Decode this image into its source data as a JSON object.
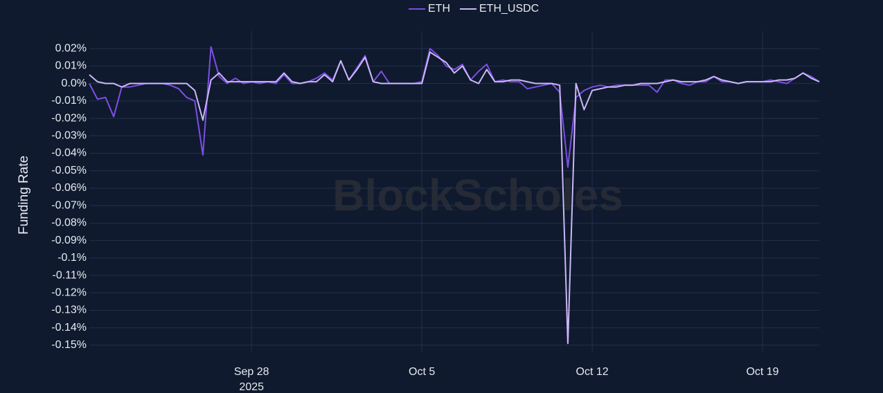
{
  "chart_data": {
    "type": "line",
    "y_label": "Funding Rate",
    "watermark": "BlockScholes",
    "grid": true,
    "legend": "top",
    "ylim": [
      -0.154,
      0.03
    ],
    "yticks": [
      {
        "value": 0.02,
        "label": "0.02%"
      },
      {
        "value": 0.01,
        "label": "0.01%"
      },
      {
        "value": 0,
        "label": "0.0%"
      },
      {
        "value": -0.01,
        "label": "-0.01%"
      },
      {
        "value": -0.02,
        "label": "-0.02%"
      },
      {
        "value": -0.03,
        "label": "-0.03%"
      },
      {
        "value": -0.04,
        "label": "-0.04%"
      },
      {
        "value": -0.05,
        "label": "-0.05%"
      },
      {
        "value": -0.06,
        "label": "-0.06%"
      },
      {
        "value": -0.07,
        "label": "-0.07%"
      },
      {
        "value": -0.08,
        "label": "-0.08%"
      },
      {
        "value": -0.09,
        "label": "-0.09%"
      },
      {
        "value": -0.1,
        "label": "-0.1%"
      },
      {
        "value": -0.11,
        "label": "-0.11%"
      },
      {
        "value": -0.12,
        "label": "-0.12%"
      },
      {
        "value": -0.13,
        "label": "-0.13%"
      },
      {
        "value": -0.14,
        "label": "-0.14%"
      },
      {
        "value": -0.15,
        "label": "-0.15%"
      }
    ],
    "xlim": [
      "2025-09-21 08:00",
      "2025-10-21 08:00"
    ],
    "xticks": [
      {
        "value": "2025-09-28 00:00",
        "label": "Sep 28"
      },
      {
        "value": "2025-10-05 00:00",
        "label": "Oct 5"
      },
      {
        "value": "2025-10-12 00:00",
        "label": "Oct 12"
      },
      {
        "value": "2025-10-19 00:00",
        "label": "Oct 19"
      }
    ],
    "x_year": "2025",
    "x": [
      "2025-09-21 08:00",
      "2025-09-21 16:00",
      "2025-09-22 00:00",
      "2025-09-22 08:00",
      "2025-09-22 16:00",
      "2025-09-23 00:00",
      "2025-09-23 08:00",
      "2025-09-23 16:00",
      "2025-09-24 00:00",
      "2025-09-24 08:00",
      "2025-09-24 16:00",
      "2025-09-25 00:00",
      "2025-09-25 08:00",
      "2025-09-25 16:00",
      "2025-09-26 00:00",
      "2025-09-26 08:00",
      "2025-09-26 16:00",
      "2025-09-27 00:00",
      "2025-09-27 08:00",
      "2025-09-27 16:00",
      "2025-09-28 00:00",
      "2025-09-28 08:00",
      "2025-09-28 16:00",
      "2025-09-29 00:00",
      "2025-09-29 08:00",
      "2025-09-29 16:00",
      "2025-09-30 00:00",
      "2025-09-30 08:00",
      "2025-09-30 16:00",
      "2025-10-01 00:00",
      "2025-10-01 08:00",
      "2025-10-01 16:00",
      "2025-10-02 00:00",
      "2025-10-02 08:00",
      "2025-10-02 16:00",
      "2025-10-03 00:00",
      "2025-10-03 08:00",
      "2025-10-03 16:00",
      "2025-10-04 00:00",
      "2025-10-04 08:00",
      "2025-10-04 16:00",
      "2025-10-05 00:00",
      "2025-10-05 08:00",
      "2025-10-05 16:00",
      "2025-10-06 00:00",
      "2025-10-06 08:00",
      "2025-10-06 16:00",
      "2025-10-07 00:00",
      "2025-10-07 08:00",
      "2025-10-07 16:00",
      "2025-10-08 00:00",
      "2025-10-08 08:00",
      "2025-10-08 16:00",
      "2025-10-09 00:00",
      "2025-10-09 08:00",
      "2025-10-09 16:00",
      "2025-10-10 00:00",
      "2025-10-10 08:00",
      "2025-10-10 16:00",
      "2025-10-11 00:00",
      "2025-10-11 08:00",
      "2025-10-11 16:00",
      "2025-10-12 00:00",
      "2025-10-12 08:00",
      "2025-10-12 16:00",
      "2025-10-13 00:00",
      "2025-10-13 08:00",
      "2025-10-13 16:00",
      "2025-10-14 00:00",
      "2025-10-14 08:00",
      "2025-10-14 16:00",
      "2025-10-15 00:00",
      "2025-10-15 08:00",
      "2025-10-15 16:00",
      "2025-10-16 00:00",
      "2025-10-16 08:00",
      "2025-10-16 16:00",
      "2025-10-17 00:00",
      "2025-10-17 08:00",
      "2025-10-17 16:00",
      "2025-10-18 00:00",
      "2025-10-18 08:00",
      "2025-10-18 16:00",
      "2025-10-19 00:00",
      "2025-10-19 08:00",
      "2025-10-19 16:00",
      "2025-10-20 00:00",
      "2025-10-20 08:00",
      "2025-10-20 16:00",
      "2025-10-21 00:00",
      "2025-10-21 08:00"
    ],
    "series": [
      {
        "name": "ETH",
        "color": "#7d4fe6",
        "values": [
          0.0,
          -0.009,
          -0.008,
          -0.019,
          -0.002,
          -0.002,
          -0.001,
          0.0,
          0.0,
          0.0,
          -0.001,
          -0.003,
          -0.008,
          -0.01,
          -0.041,
          0.021,
          0.004,
          0.0,
          0.003,
          0.0,
          0.001,
          0.0,
          0.001,
          0.0,
          0.005,
          0.0,
          0.0,
          0.001,
          0.003,
          0.006,
          0.002,
          0.013,
          0.002,
          0.009,
          0.016,
          0.001,
          0.007,
          0.0,
          0.0,
          0.0,
          0.0,
          0.001,
          0.02,
          0.016,
          0.01,
          0.008,
          0.011,
          0.002,
          0.007,
          0.011,
          0.001,
          0.002,
          0.001,
          0.001,
          -0.003,
          -0.002,
          -0.001,
          0.0,
          -0.005,
          -0.048,
          -0.008,
          -0.004,
          -0.002,
          -0.001,
          -0.002,
          -0.001,
          -0.001,
          -0.001,
          -0.001,
          -0.001,
          -0.005,
          0.002,
          0.002,
          0.0,
          -0.001,
          0.001,
          0.001,
          0.004,
          0.001,
          0.001,
          0.0,
          0.001,
          0.001,
          0.001,
          0.002,
          0.001,
          0.0,
          0.003,
          0.006,
          0.004,
          0.001
        ]
      },
      {
        "name": "ETH_USDC",
        "color": "#cdb8f6",
        "values": [
          0.005,
          0.001,
          0.0,
          0.0,
          -0.002,
          0.0,
          0.0,
          0.0,
          0.0,
          0.0,
          0.0,
          0.0,
          0.0,
          -0.004,
          -0.021,
          0.002,
          0.006,
          0.001,
          0.001,
          0.001,
          0.001,
          0.001,
          0.001,
          0.001,
          0.006,
          0.001,
          0.0,
          0.001,
          0.001,
          0.005,
          0.001,
          0.013,
          0.002,
          0.008,
          0.015,
          0.001,
          0.0,
          0.0,
          0.0,
          0.0,
          0.0,
          0.0,
          0.018,
          0.015,
          0.012,
          0.006,
          0.01,
          0.002,
          0.0,
          0.008,
          0.001,
          0.001,
          0.002,
          0.002,
          0.001,
          0.0,
          0.0,
          0.0,
          -0.001,
          -0.149,
          0.0,
          -0.015,
          -0.004,
          -0.003,
          -0.002,
          -0.002,
          -0.001,
          -0.001,
          0.0,
          0.0,
          0.0,
          0.001,
          0.002,
          0.001,
          0.001,
          0.001,
          0.002,
          0.004,
          0.002,
          0.001,
          0.0,
          0.001,
          0.001,
          0.001,
          0.001,
          0.002,
          0.002,
          0.003,
          0.006,
          0.003,
          0.001
        ]
      }
    ]
  }
}
